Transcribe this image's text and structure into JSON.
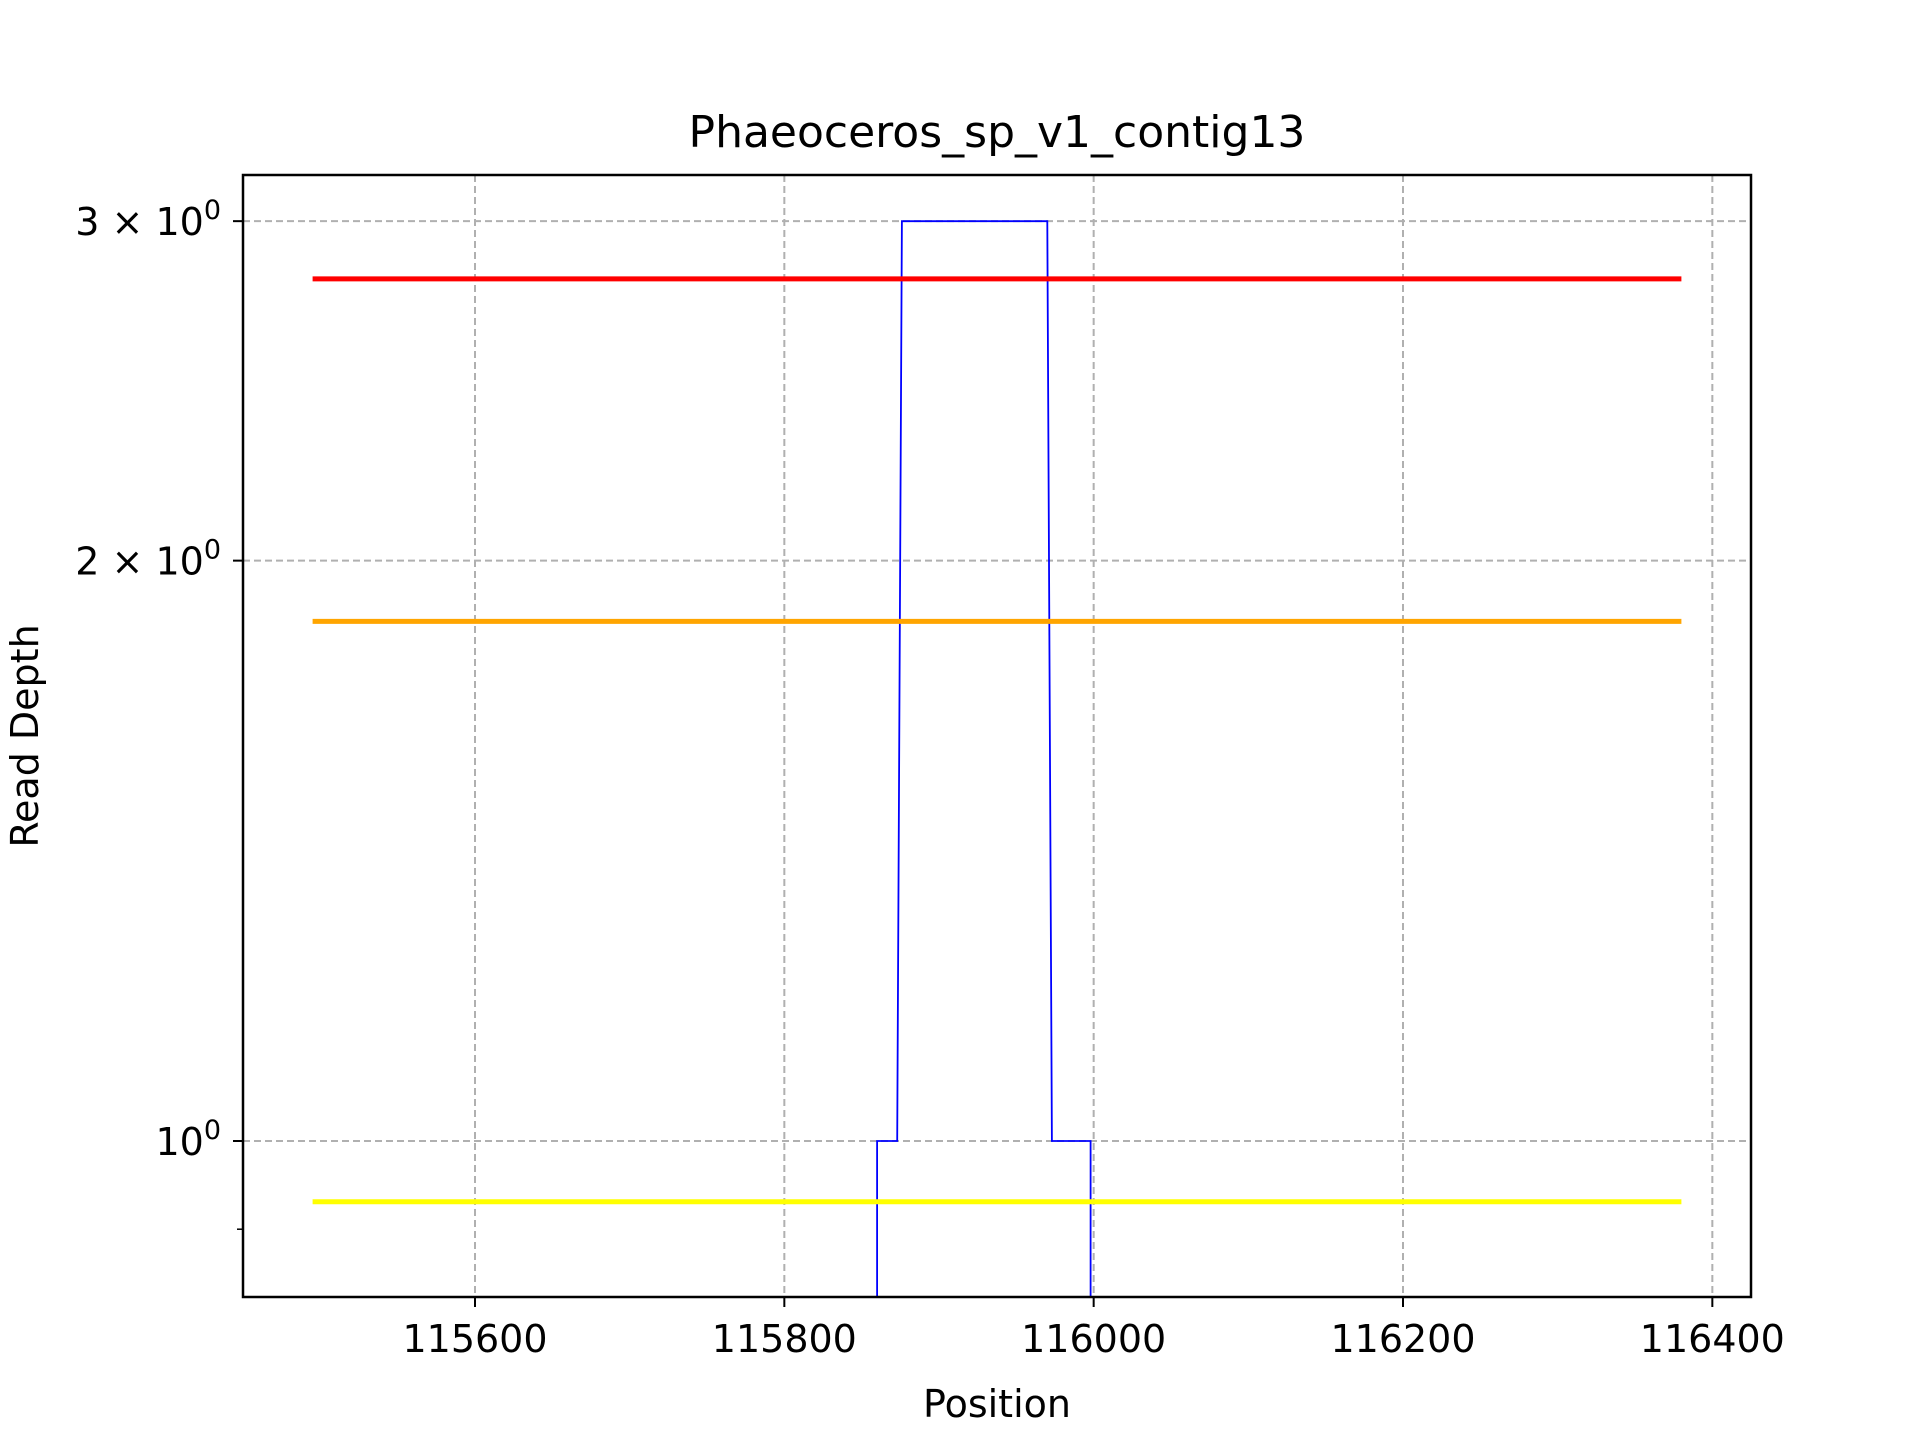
{
  "chart_data": {
    "type": "line",
    "title": "Phaeoceros_sp_v1_contig13",
    "xlabel": "Position",
    "ylabel": "Read Depth",
    "xlim": [
      115450,
      116425
    ],
    "ylim": [
      0.83,
      3.17
    ],
    "yscale": "log",
    "grid": true,
    "x_ticks": [
      115600,
      115800,
      116000,
      116200,
      116400
    ],
    "x_tick_labels": [
      "115600",
      "115800",
      "116000",
      "116200",
      "116400"
    ],
    "y_ticks": [
      {
        "value": 1,
        "base": "10",
        "sup": "0",
        "mult": ""
      },
      {
        "value": 2,
        "base": "10",
        "sup": "0",
        "mult": "2 × "
      },
      {
        "value": 3,
        "base": "10",
        "sup": "0",
        "mult": "3 × "
      }
    ],
    "series": [
      {
        "color": "#0000ff",
        "drawstyle": "steps",
        "x": [
          115860,
          115860,
          115873,
          115876,
          115970,
          115973,
          115998,
          115998
        ],
        "y": [
          0.83,
          1,
          1,
          3,
          3,
          1,
          1,
          0.83
        ]
      },
      {
        "color": "#ff0000",
        "x": [
          115495,
          116380
        ],
        "y": [
          2.8,
          2.8
        ]
      },
      {
        "color": "#ffa500",
        "x": [
          115495,
          116380
        ],
        "y": [
          1.86,
          1.86
        ]
      },
      {
        "color": "#ffff00",
        "x": [
          115495,
          116380
        ],
        "y": [
          0.93,
          0.93
        ]
      }
    ]
  }
}
